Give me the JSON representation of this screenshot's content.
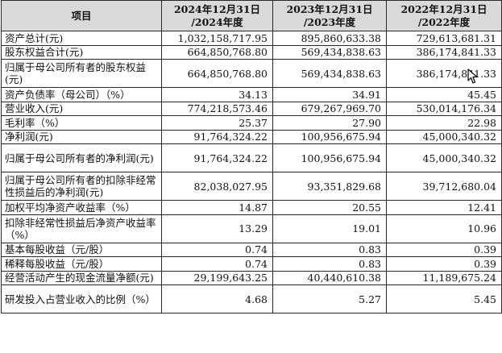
{
  "header": {
    "item": "项目",
    "col1": [
      "2024年12月31日",
      "/2024年度"
    ],
    "col2": [
      "2023年12月31日",
      "/2023年度"
    ],
    "col3": [
      "2022年12月31日",
      "/2022年度"
    ]
  },
  "rows": [
    {
      "label": "资产总计(元)",
      "v2024": "1,032,158,717.95",
      "v2023": "895,860,633.38",
      "v2022": "729,613,681.31"
    },
    {
      "label": "股东权益合计(元)",
      "v2024": "664,850,768.80",
      "v2023": "569,434,838.63",
      "v2022": "386,174,841.33"
    },
    {
      "label": "归属于母公司所有者的股东权益(元)",
      "v2024": "664,850,768.80",
      "v2023": "569,434,838.63",
      "v2022": "386,174,841.33"
    },
    {
      "label": "资产负债率（母公司）（%）",
      "v2024": "34.13",
      "v2023": "34.91",
      "v2022": "45.45"
    },
    {
      "label": "营业收入(元)",
      "v2024": "774,218,573.46",
      "v2023": "679,267,969.70",
      "v2022": "530,014,176.34"
    },
    {
      "label": "毛利率（%）",
      "v2024": "25.37",
      "v2023": "27.90",
      "v2022": "22.98"
    },
    {
      "label": "净利润(元)",
      "v2024": "91,764,324.22",
      "v2023": "100,956,675.94",
      "v2022": "45,000,340.32"
    },
    {
      "label": "归属于母公司所有者的净利润(元)",
      "v2024": "91,764,324.22",
      "v2023": "100,956,675.94",
      "v2022": "45,000,340.32"
    },
    {
      "label": "归属于母公司所有者的扣除非经常性损益后的净利润(元)",
      "v2024": "82,038,027.95",
      "v2023": "93,351,829.68",
      "v2022": "39,712,680.04"
    },
    {
      "label": "加权平均净资产收益率（%）",
      "v2024": "14.87",
      "v2023": "20.55",
      "v2022": "12.41"
    },
    {
      "label": "扣除非经常性损益后净资产收益率（%）",
      "v2024": "13.29",
      "v2023": "19.01",
      "v2022": "10.96"
    },
    {
      "label": "基本每股收益（元/股）",
      "v2024": "0.74",
      "v2023": "0.83",
      "v2022": "0.39"
    },
    {
      "label": "稀释每股收益（元/股）",
      "v2024": "0.74",
      "v2023": "0.83",
      "v2022": "0.39"
    },
    {
      "label": "经营活动产生的现金流量净额(元)",
      "v2024": "29,199,643.25",
      "v2023": "40,440,610.38",
      "v2022": "11,189,675.24"
    },
    {
      "label": "研发投入占营业收入的比例（%）",
      "v2024": "4.68",
      "v2023": "5.27",
      "v2022": "5.45"
    }
  ]
}
